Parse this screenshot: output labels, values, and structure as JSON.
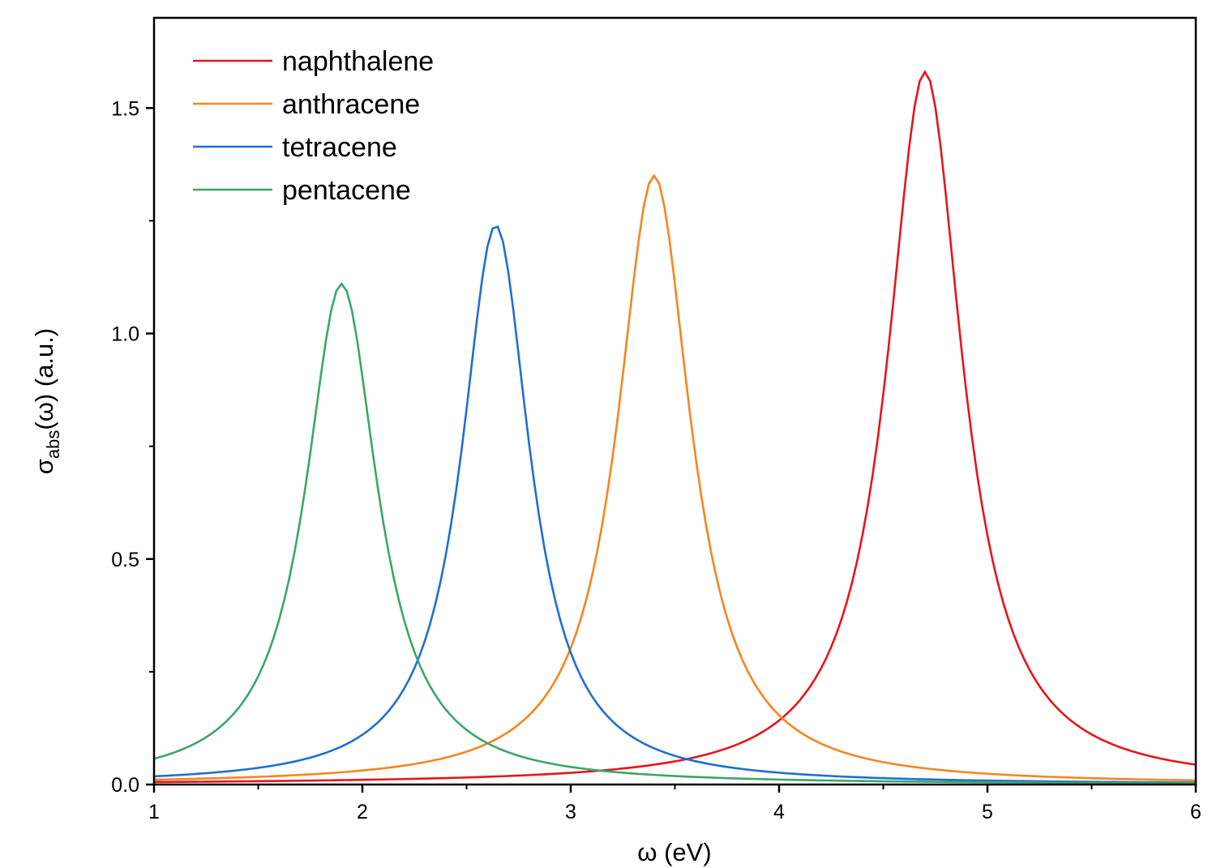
{
  "chart_data": {
    "type": "line",
    "title": "",
    "xlabel": "ω (eV)",
    "ylabel_main": "σ",
    "ylabel_sub": "abs",
    "ylabel_rest": "(ω) (a.u.)",
    "xlim": [
      1,
      6
    ],
    "ylim": [
      0,
      1.7
    ],
    "x_ticks": [
      1,
      2,
      3,
      4,
      5,
      6
    ],
    "x_tick_labels": [
      "1",
      "2",
      "3",
      "4",
      "5",
      "6"
    ],
    "x_minor_ticks": [
      1.5,
      2.5,
      3.5,
      4.5,
      5.5
    ],
    "y_ticks": [
      0,
      0.5,
      1.0,
      1.5
    ],
    "y_tick_labels": [
      "0.0",
      "0.5",
      "1.0",
      "1.5"
    ],
    "y_minor_ticks": [
      0.25,
      0.75,
      1.25
    ],
    "grid": false,
    "legend_position": "top-left",
    "series": [
      {
        "name": "naphthalene",
        "color": "#e8141c",
        "peak_x": 4.7,
        "peak_y": 1.58,
        "half_width": 0.22,
        "scale": 1.0
      },
      {
        "name": "anthracene",
        "color": "#f7851d",
        "peak_x": 3.4,
        "peak_y": 1.35,
        "half_width": 0.215,
        "scale": 1.0
      },
      {
        "name": "tetracene",
        "color": "#1f6fd1",
        "peak_x": 2.64,
        "peak_y": 1.24,
        "half_width": 0.2,
        "scale": 1.0
      },
      {
        "name": "pentacene",
        "color": "#3aa66b",
        "peak_x": 1.9,
        "peak_y": 1.11,
        "half_width": 0.21,
        "scale": 1.0
      }
    ]
  }
}
